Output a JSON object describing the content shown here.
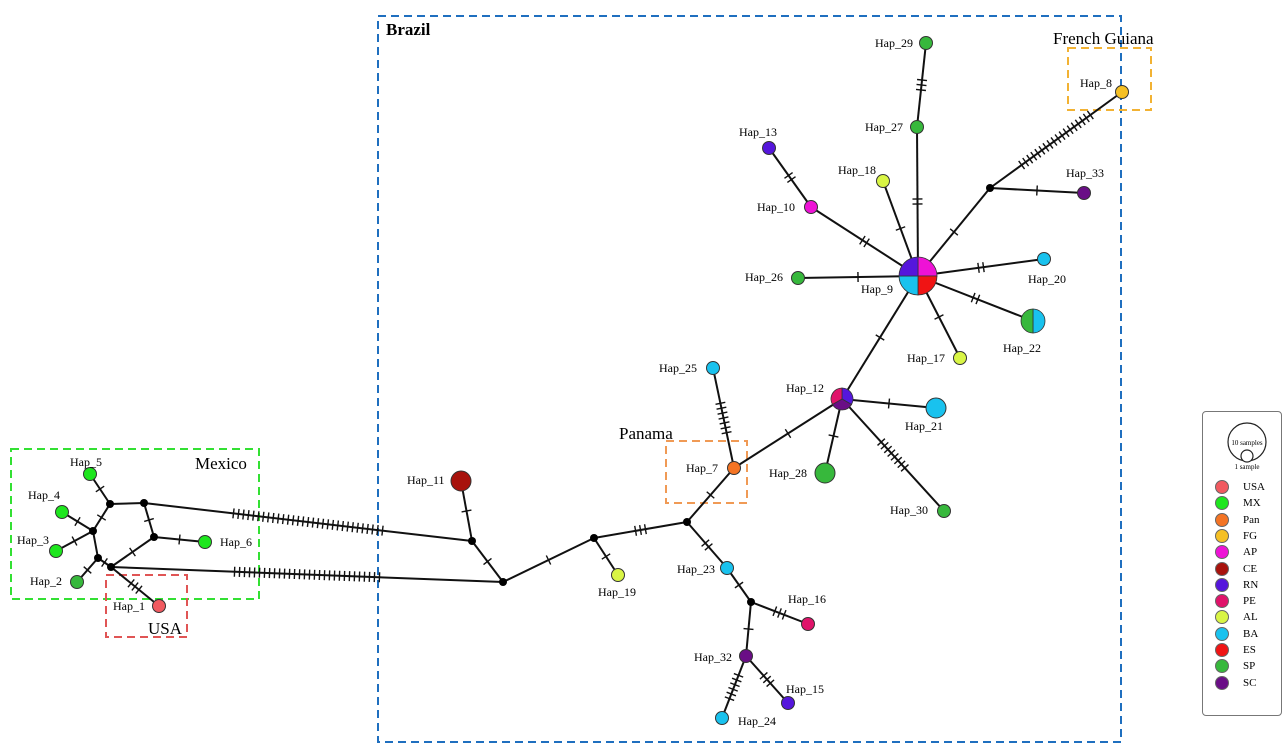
{
  "regions": {
    "brazil": "Brazil",
    "french_guiana": "French Guiana",
    "mexico": "Mexico",
    "usa": "USA",
    "panama": "Panama"
  },
  "region_colors": {
    "brazil": "#1f6fbf",
    "french_guiana": "#f2b233",
    "mexico": "#33e033",
    "usa": "#e05555",
    "panama": "#f09a55"
  },
  "legend": {
    "scale_large": "10 samples",
    "scale_small": "1 sample",
    "items": [
      {
        "label": "USA",
        "color": "#f15a60"
      },
      {
        "label": "MX",
        "color": "#1ee61e"
      },
      {
        "label": "Pan",
        "color": "#f47424"
      },
      {
        "label": "FG",
        "color": "#f5c025"
      },
      {
        "label": "AP",
        "color": "#ee12d6"
      },
      {
        "label": "CE",
        "color": "#a8120c"
      },
      {
        "label": "RN",
        "color": "#5516dc"
      },
      {
        "label": "PE",
        "color": "#e0136a"
      },
      {
        "label": "AL",
        "color": "#d9f545"
      },
      {
        "label": "BA",
        "color": "#19c2ee"
      },
      {
        "label": "ES",
        "color": "#f01414"
      },
      {
        "label": "SP",
        "color": "#37b83c"
      },
      {
        "label": "SC",
        "color": "#6a0e86"
      }
    ]
  },
  "haplotypes": [
    {
      "id": "Hap_1",
      "label": "Hap_1",
      "colors": [
        "#f15a60"
      ]
    },
    {
      "id": "Hap_2",
      "label": "Hap_2",
      "colors": [
        "#37b83c"
      ]
    },
    {
      "id": "Hap_3",
      "label": "Hap_3",
      "colors": [
        "#1ee61e"
      ]
    },
    {
      "id": "Hap_4",
      "label": "Hap_4",
      "colors": [
        "#1ee61e"
      ]
    },
    {
      "id": "Hap_5",
      "label": "Hap_5",
      "colors": [
        "#1ee61e"
      ]
    },
    {
      "id": "Hap_6",
      "label": "Hap_6",
      "colors": [
        "#1ee61e"
      ]
    },
    {
      "id": "Hap_7",
      "label": "Hap_7",
      "colors": [
        "#f47424"
      ]
    },
    {
      "id": "Hap_8",
      "label": "Hap_8",
      "colors": [
        "#f5c025"
      ]
    },
    {
      "id": "Hap_9",
      "label": "Hap_9",
      "colors": [
        "#ee12d6",
        "#f01414",
        "#19c2ee",
        "#5516dc"
      ]
    },
    {
      "id": "Hap_10",
      "label": "Hap_10",
      "colors": [
        "#ee12d6"
      ]
    },
    {
      "id": "Hap_11",
      "label": "Hap_11",
      "colors": [
        "#a8120c"
      ]
    },
    {
      "id": "Hap_12",
      "label": "Hap_12",
      "colors": [
        "#5516dc",
        "#6a0e86",
        "#e0136a"
      ]
    },
    {
      "id": "Hap_13",
      "label": "Hap_13",
      "colors": [
        "#5516dc"
      ]
    },
    {
      "id": "Hap_15",
      "label": "Hap_15",
      "colors": [
        "#5516dc"
      ]
    },
    {
      "id": "Hap_16",
      "label": "Hap_16",
      "colors": [
        "#e0136a"
      ]
    },
    {
      "id": "Hap_17",
      "label": "Hap_17",
      "colors": [
        "#d9f545"
      ]
    },
    {
      "id": "Hap_18",
      "label": "Hap_18",
      "colors": [
        "#d9f545"
      ]
    },
    {
      "id": "Hap_19",
      "label": "Hap_19",
      "colors": [
        "#d9f545"
      ]
    },
    {
      "id": "Hap_20",
      "label": "Hap_20",
      "colors": [
        "#19c2ee"
      ]
    },
    {
      "id": "Hap_21",
      "label": "Hap_21",
      "colors": [
        "#19c2ee"
      ]
    },
    {
      "id": "Hap_22",
      "label": "Hap_22",
      "colors": [
        "#19c2ee",
        "#37b83c"
      ]
    },
    {
      "id": "Hap_23",
      "label": "Hap_23",
      "colors": [
        "#19c2ee"
      ]
    },
    {
      "id": "Hap_24",
      "label": "Hap_24",
      "colors": [
        "#19c2ee"
      ]
    },
    {
      "id": "Hap_25",
      "label": "Hap_25",
      "colors": [
        "#19c2ee"
      ]
    },
    {
      "id": "Hap_26",
      "label": "Hap_26",
      "colors": [
        "#37b83c"
      ]
    },
    {
      "id": "Hap_27",
      "label": "Hap_27",
      "colors": [
        "#37b83c"
      ]
    },
    {
      "id": "Hap_28",
      "label": "Hap_28",
      "colors": [
        "#37b83c"
      ]
    },
    {
      "id": "Hap_29",
      "label": "Hap_29",
      "colors": [
        "#37b83c"
      ]
    },
    {
      "id": "Hap_30",
      "label": "Hap_30",
      "colors": [
        "#37b83c"
      ]
    },
    {
      "id": "Hap_32",
      "label": "Hap_32",
      "colors": [
        "#6a0e86"
      ]
    },
    {
      "id": "Hap_33",
      "label": "Hap_33",
      "colors": [
        "#6a0e86"
      ]
    }
  ],
  "edges": [
    {
      "from": "Hap_9",
      "to": "Hap_27",
      "mutations": 2
    },
    {
      "from": "Hap_27",
      "to": "Hap_29",
      "mutations": 3
    },
    {
      "from": "Hap_9",
      "to": "Hap_18",
      "mutations": 1
    },
    {
      "from": "Hap_9",
      "to": "Hap_10",
      "mutations": 2
    },
    {
      "from": "Hap_10",
      "to": "Hap_13",
      "mutations": 2
    },
    {
      "from": "Hap_9",
      "to": "Hap_26",
      "mutations": 1
    },
    {
      "from": "Hap_9",
      "to": "mv_fg",
      "mutations": 1
    },
    {
      "from": "mv_fg",
      "to": "Hap_8",
      "mutations": 18
    },
    {
      "from": "mv_fg",
      "to": "Hap_33",
      "mutations": 1
    },
    {
      "from": "Hap_9",
      "to": "Hap_20",
      "mutations": 2
    },
    {
      "from": "Hap_9",
      "to": "Hap_22",
      "mutations": 2
    },
    {
      "from": "Hap_9",
      "to": "Hap_17",
      "mutations": 1
    },
    {
      "from": "Hap_9",
      "to": "Hap_12",
      "mutations": 1
    },
    {
      "from": "Hap_12",
      "to": "Hap_21",
      "mutations": 1
    },
    {
      "from": "Hap_12",
      "to": "Hap_28",
      "mutations": 1
    },
    {
      "from": "Hap_12",
      "to": "Hap_30",
      "mutations": 8
    },
    {
      "from": "Hap_12",
      "to": "Hap_7",
      "mutations": 1
    },
    {
      "from": "Hap_7",
      "to": "Hap_25",
      "mutations": 7
    },
    {
      "from": "Hap_7",
      "to": "mv_pan",
      "mutations": 1
    },
    {
      "from": "mv_pan",
      "to": "mv_19",
      "mutations": 3
    },
    {
      "from": "mv_19",
      "to": "Hap_19",
      "mutations": 1
    },
    {
      "from": "mv_19",
      "to": "mv_center",
      "mutations": 1
    },
    {
      "from": "mv_pan",
      "to": "Hap_23",
      "mutations": 2
    },
    {
      "from": "Hap_23",
      "to": "mv_16",
      "mutations": 1
    },
    {
      "from": "mv_16",
      "to": "Hap_16",
      "mutations": 3
    },
    {
      "from": "mv_16",
      "to": "Hap_32",
      "mutations": 1
    },
    {
      "from": "Hap_32",
      "to": "Hap_15",
      "mutations": 3
    },
    {
      "from": "Hap_32",
      "to": "Hap_24",
      "mutations": 6
    },
    {
      "from": "mv_center",
      "to": "mv_11",
      "mutations": 1
    },
    {
      "from": "mv_11",
      "to": "Hap_11",
      "mutations": 1
    },
    {
      "from": "mv_11",
      "to": "mv_mx_top",
      "mutations": 31
    },
    {
      "from": "mv_center",
      "to": "mv_usa",
      "mutations": 30
    },
    {
      "from": "mv_mx_top",
      "to": "mv_mx_a",
      "mutations": 0
    },
    {
      "from": "mv_mx_top",
      "to": "mv_mx_c",
      "mutations": 1
    },
    {
      "from": "mv_mx_c",
      "to": "Hap_6",
      "mutations": 1
    },
    {
      "from": "mv_mx_c",
      "to": "mv_usa",
      "mutations": 1
    },
    {
      "from": "mv_mx_a",
      "to": "Hap_5",
      "mutations": 1
    },
    {
      "from": "mv_mx_a",
      "to": "mv_mx_b",
      "mutations": 1
    },
    {
      "from": "mv_mx_b",
      "to": "Hap_4",
      "mutations": 1
    },
    {
      "from": "mv_mx_b",
      "to": "Hap_3",
      "mutations": 1
    },
    {
      "from": "mv_mx_b",
      "to": "mv_mx_d",
      "mutations": 0
    },
    {
      "from": "mv_mx_d",
      "to": "Hap_2",
      "mutations": 1
    },
    {
      "from": "mv_mx_d",
      "to": "mv_usa",
      "mutations": 1
    },
    {
      "from": "mv_usa",
      "to": "Hap_1",
      "mutations": 3
    }
  ]
}
